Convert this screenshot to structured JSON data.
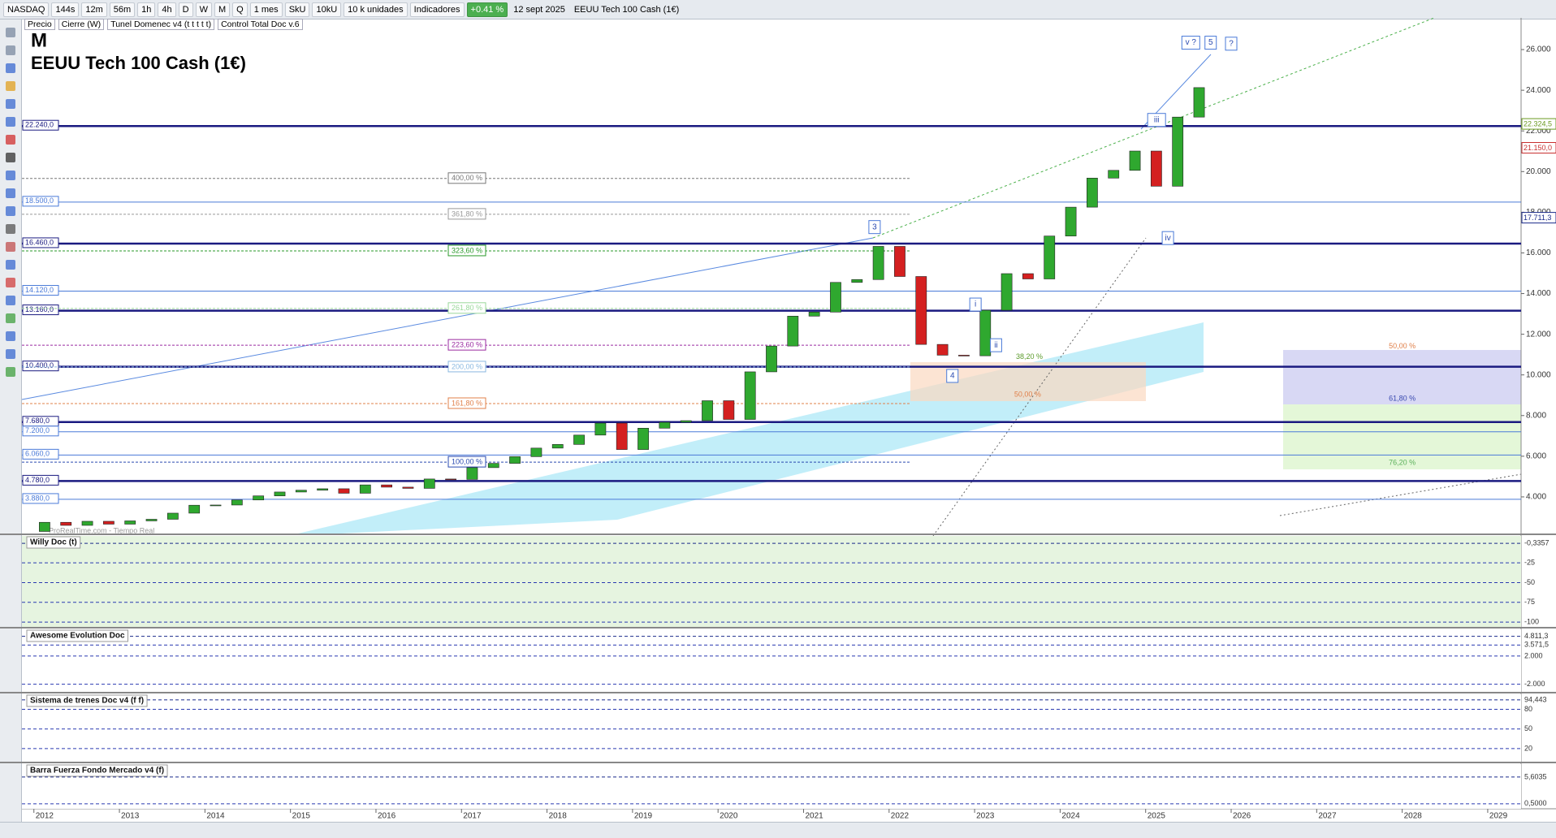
{
  "toolbar": {
    "symbol": "NASDAQ",
    "timeframes": [
      "144s",
      "12m",
      "56m",
      "1h",
      "4h",
      "D",
      "W",
      "M",
      "Q"
    ],
    "period": "1 mes",
    "units": [
      "SkU",
      "10kU"
    ],
    "quantity": "10 k unidades",
    "indicators": "Indicadores",
    "change": "+0.41 %",
    "date": "12 sept 2025",
    "instrument": "EEUU Tech 100 Cash (1€)"
  },
  "legend_row": [
    "Precio",
    "Cierre (W)",
    "Tunel Domenec v4 (t t t t t)",
    "Control Total Doc v.6"
  ],
  "chart": {
    "timeframe": "M",
    "title": "EEUU Tech 100 Cash (1€)",
    "watermark": "ProRealTime.com - Tiempo Real",
    "ylim": [
      2200,
      27560
    ],
    "yticks": [
      {
        "value": 26000,
        "label": "26.000"
      },
      {
        "value": 24000,
        "label": "24.000"
      },
      {
        "value": 22000,
        "label": "22.000"
      },
      {
        "value": 20000,
        "label": "20.000"
      },
      {
        "value": 18000,
        "label": "18.000"
      },
      {
        "value": 16000,
        "label": "16.000"
      },
      {
        "value": 14000,
        "label": "14.000"
      },
      {
        "value": 12000,
        "label": "12.000"
      },
      {
        "value": 10000,
        "label": "10.000"
      },
      {
        "value": 8000,
        "label": "8.000"
      },
      {
        "value": 6000,
        "label": "6.000"
      },
      {
        "value": 4000,
        "label": "4.000"
      }
    ],
    "xlim": [
      2011.86,
      2029.39
    ],
    "xticks": [
      2012,
      2013,
      2014,
      2015,
      2016,
      2017,
      2018,
      2019,
      2020,
      2021,
      2022,
      2023,
      2024,
      2025,
      2026,
      2027,
      2028,
      2029
    ],
    "up_color": "#2fa82f",
    "down_color": "#d42020",
    "open": [
      2300,
      2750,
      2600,
      2800,
      2660,
      2820,
      2900,
      3200,
      3590,
      3600,
      3850,
      4050,
      4240,
      4330,
      4400,
      4180,
      4590,
      4480,
      4420,
      4880,
      4860,
      5440,
      5650,
      5980,
      6400,
      6580,
      7040,
      7630,
      6330,
      7380,
      7670,
      7750,
      8730,
      7810,
      10150,
      11420,
      12890,
      13090,
      14550,
      14690,
      16320,
      14840,
      11500,
      10970,
      10940,
      13180,
      14980,
      14720,
      16830,
      18250,
      19680,
      20060,
      21010,
      19280,
      22680
    ],
    "close": [
      2750,
      2600,
      2800,
      2660,
      2820,
      2900,
      3200,
      3590,
      3600,
      3850,
      4050,
      4240,
      4330,
      4400,
      4180,
      4590,
      4480,
      4420,
      4880,
      4860,
      5440,
      5650,
      5980,
      6400,
      6580,
      7040,
      7630,
      6330,
      7380,
      7670,
      7750,
      8730,
      7810,
      10150,
      11420,
      12890,
      13090,
      14550,
      14690,
      16320,
      14840,
      11500,
      10970,
      10940,
      13180,
      14980,
      14720,
      16830,
      18250,
      19680,
      20060,
      21010,
      19280,
      22680,
      24130
    ],
    "levels": [
      {
        "value": 22240,
        "label": "22.240,0",
        "style": "major"
      },
      {
        "value": 18500,
        "label": "18.500,0",
        "style": "minor"
      },
      {
        "value": 16460,
        "label": "16.460,0",
        "style": "major"
      },
      {
        "value": 14120,
        "label": "14.120,0",
        "style": "minor"
      },
      {
        "value": 13160,
        "label": "13.160,0",
        "style": "major"
      },
      {
        "value": 10400,
        "label": "10.400,0",
        "style": "major"
      },
      {
        "value": 7680,
        "label": "7.680,0",
        "style": "major"
      },
      {
        "value": 7200,
        "label": "7.200,0",
        "style": "minor"
      },
      {
        "value": 6060,
        "label": "6.060,0",
        "style": "minor"
      },
      {
        "value": 4780,
        "label": "4.780,0",
        "style": "major"
      },
      {
        "value": 3880,
        "label": "3.880,0",
        "style": "minor"
      }
    ],
    "price_markers": [
      {
        "value": 22324.5,
        "label": "22.324,5",
        "color": "#6a9a20"
      },
      {
        "value": 21150,
        "label": "21.150,0",
        "color": "#c83030"
      },
      {
        "value": 17711.3,
        "label": "17.711,3",
        "color": "#1a2a8a"
      }
    ],
    "fibs": [
      {
        "label": "400,00 %",
        "value": 19660,
        "color": "#777777"
      },
      {
        "label": "361,80 %",
        "value": 17900,
        "color": "#999999"
      },
      {
        "label": "323,60 %",
        "value": 16100,
        "color": "#2a9a2a"
      },
      {
        "label": "261,80 %",
        "value": 13270,
        "color": "#9ad89a"
      },
      {
        "label": "223,60 %",
        "value": 11460,
        "color": "#9a2aa0"
      },
      {
        "label": "200,00 %",
        "value": 10390,
        "color": "#8ab8e0"
      },
      {
        "label": "161,80 %",
        "value": 8590,
        "color": "#e0804a"
      },
      {
        "label": "100,00 %",
        "value": 5710,
        "color": "#2a4ab0"
      }
    ],
    "waves": [
      {
        "label": "3",
        "t": 2021.83,
        "value": 17270
      },
      {
        "label": "4",
        "t": 2022.74,
        "value": 9950
      },
      {
        "label": "i",
        "t": 2023.01,
        "value": 13460
      },
      {
        "label": "ii",
        "t": 2023.25,
        "value": 11460
      },
      {
        "label": "iii",
        "t": 2025.09,
        "value": 22540
      },
      {
        "label": "iv",
        "t": 2025.26,
        "value": 16730
      },
      {
        "label": "v ?",
        "t": 2025.49,
        "value": 26340
      },
      {
        "label": "5",
        "t": 2025.76,
        "value": 26340
      },
      {
        "label": "?",
        "t": 2026.0,
        "value": 26290
      }
    ],
    "fib_notes": [
      {
        "label": "38,20 %",
        "t": 2023.64,
        "value": 10880,
        "color": "#5a9a2a"
      },
      {
        "label": "50,00 %",
        "t": 2023.62,
        "value": 9020,
        "color": "#e0804a"
      },
      {
        "label": "50,00 %",
        "t": 2028.0,
        "value": 11410,
        "color": "#e0804a"
      },
      {
        "label": "61,80 %",
        "t": 2028.0,
        "value": 8830,
        "color": "#3a4ab0"
      },
      {
        "label": "76,20 %",
        "t": 2028.0,
        "value": 5660,
        "color": "#5ab05a"
      }
    ]
  },
  "panels": [
    {
      "name": "Willy Doc (t)",
      "ylim": [
        -106,
        9
      ],
      "ticks": [
        {
          "value": -0.3357,
          "label": "-0,3357"
        },
        -25,
        -50,
        -75,
        -100
      ]
    },
    {
      "name": "Awesome Evolution Doc",
      "ylim": [
        -3200,
        5800
      ],
      "ticks": [
        {
          "value": 4811.3,
          "label": "4.811,3"
        },
        {
          "value": 3571.5,
          "label": "3.571,5"
        },
        {
          "value": 2000,
          "label": "2.000"
        },
        {
          "value": -2000,
          "label": "-2.000"
        }
      ]
    },
    {
      "name": "Sistema de trenes Doc v4 (f f)",
      "ylim": [
        0,
        103
      ],
      "ticks": [
        {
          "value": 94.443,
          "label": "94,443"
        },
        80,
        50,
        20
      ]
    },
    {
      "name": "Barra Fuerza Fondo Mercado v4 (f)",
      "ylim": [
        -0.45,
        8.06
      ],
      "ticks": [
        {
          "value": 5.6035,
          "label": "5,6035"
        },
        {
          "value": 0.5,
          "label": "0,5000"
        }
      ]
    }
  ]
}
